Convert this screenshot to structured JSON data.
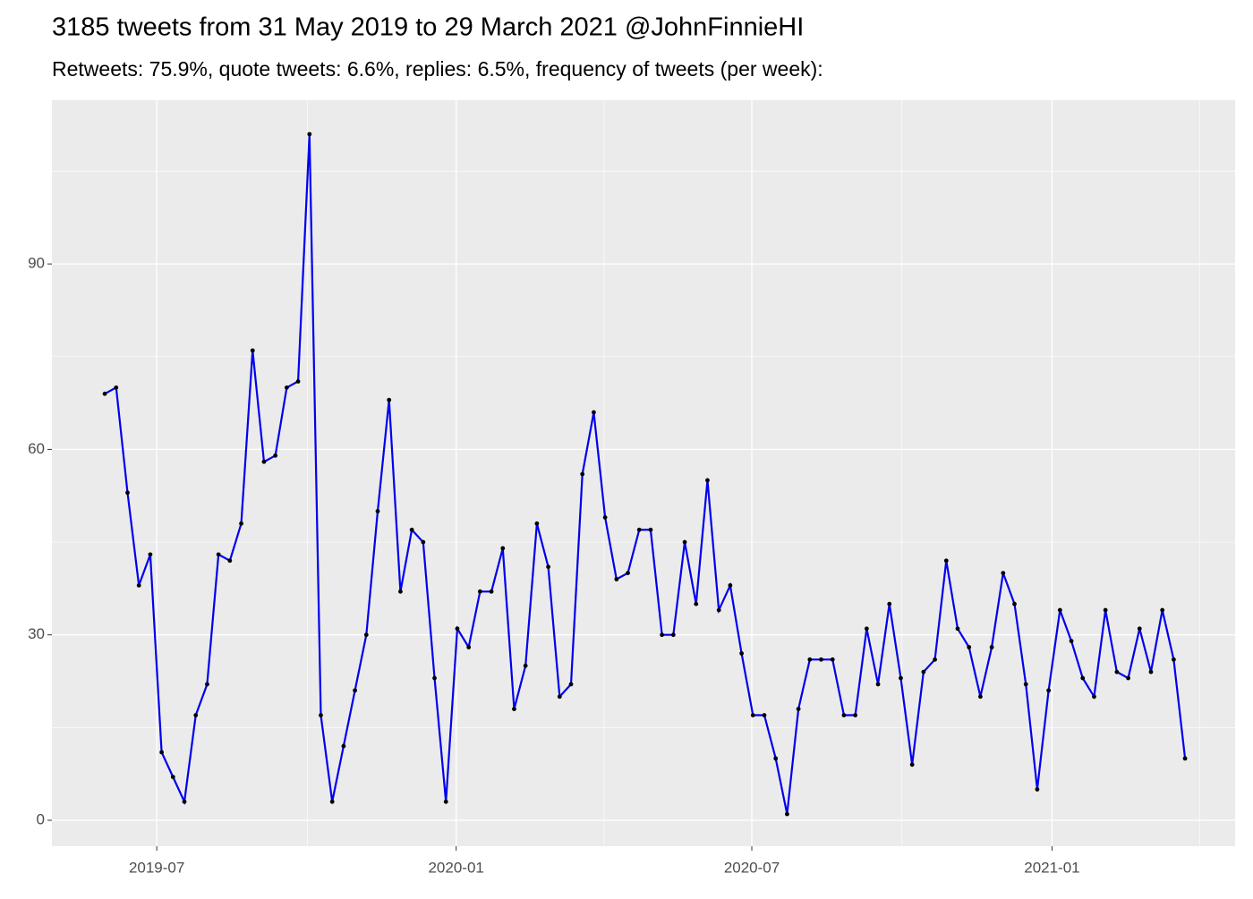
{
  "chart_data": {
    "type": "line",
    "title": "3185 tweets from 31 May 2019 to 29 March 2021 @JohnFinnieHI",
    "subtitle": "Retweets: 75.9%, quote tweets: 6.6%, replies: 6.5%, frequency of tweets (per week):",
    "categories": [
      null,
      null,
      null,
      null,
      null,
      null,
      null,
      null,
      null,
      null,
      null,
      null,
      null,
      null,
      null,
      null,
      null,
      null,
      null,
      null,
      null,
      null,
      null,
      null,
      null,
      null,
      null,
      null,
      null,
      null,
      null,
      null,
      null,
      null,
      null,
      null,
      null,
      null,
      null,
      null,
      null,
      null,
      null,
      null,
      null,
      null,
      null,
      null,
      null,
      null,
      null,
      null,
      null,
      null,
      null,
      null,
      null,
      null,
      null,
      null,
      null,
      null,
      null,
      null,
      null,
      null,
      null,
      null,
      null,
      null,
      null,
      null,
      null,
      null,
      null,
      null,
      null,
      null,
      null,
      null,
      null,
      null,
      null,
      null,
      null,
      null,
      null,
      null,
      null,
      null,
      null,
      null,
      null,
      null,
      null,
      null
    ],
    "values": [
      69,
      70,
      53,
      38,
      43,
      11,
      7,
      3,
      17,
      22,
      43,
      42,
      48,
      76,
      58,
      59,
      70,
      71,
      111,
      17,
      3,
      12,
      21,
      30,
      50,
      68,
      37,
      47,
      45,
      23,
      3,
      31,
      28,
      37,
      37,
      44,
      18,
      25,
      48,
      41,
      20,
      22,
      56,
      66,
      49,
      39,
      40,
      47,
      47,
      30,
      30,
      45,
      35,
      55,
      34,
      38,
      27,
      17,
      17,
      10,
      1,
      18,
      26,
      26,
      26,
      17,
      17,
      31,
      22,
      35,
      23,
      9,
      24,
      26,
      42,
      31,
      28,
      20,
      28,
      40,
      35,
      22,
      5,
      21,
      34,
      29,
      23,
      20,
      34,
      24,
      23,
      31,
      24,
      34,
      26,
      10
    ],
    "color": "#0000ee",
    "point_color": "#000000",
    "xlim": [
      -4.65,
      99.4
    ],
    "xticks": [
      {
        "value": 4.57,
        "label": "2019-07"
      },
      {
        "value": 30.9,
        "label": "2020-01"
      },
      {
        "value": 56.9,
        "label": "2020-07"
      },
      {
        "value": 83.3,
        "label": "2021-01"
      }
    ],
    "xminor": [
      17.8,
      43.9,
      70.1,
      96.3
    ],
    "ylim": [
      -4.2,
      116.5
    ],
    "yticks": [
      0,
      30,
      60,
      90
    ],
    "yminor": [
      15,
      45,
      75,
      105
    ],
    "grid": true
  }
}
